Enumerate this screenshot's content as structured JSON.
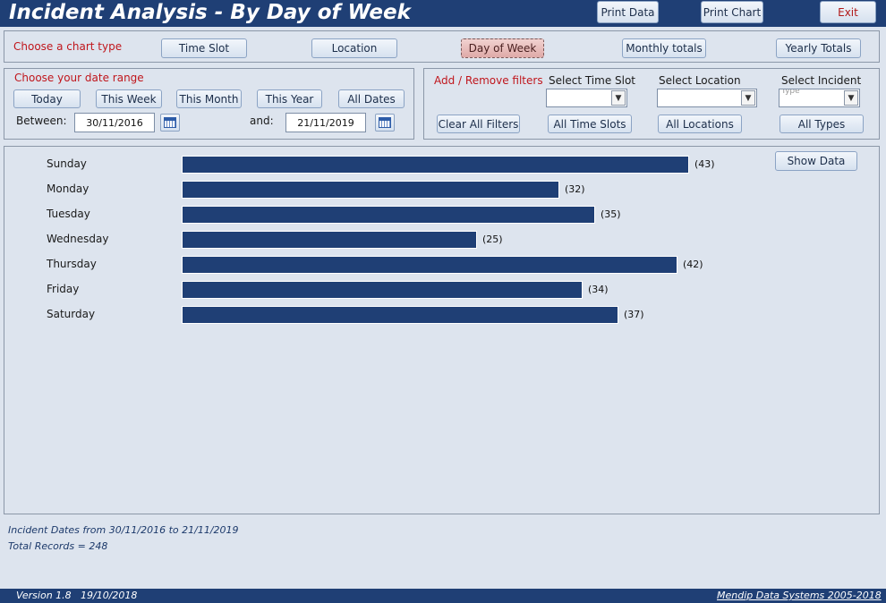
{
  "header": {
    "title": "Incident Analysis - By Day of Week",
    "print_data": "Print Data",
    "print_chart": "Print Chart",
    "exit": "Exit"
  },
  "chart_type": {
    "label": "Choose a chart type",
    "options": [
      "Time Slot",
      "Location",
      "Day of Week",
      "Monthly totals",
      "Yearly Totals"
    ],
    "selected": "Day of Week"
  },
  "date_range": {
    "label": "Choose your date range",
    "buttons": [
      "Today",
      "This Week",
      "This Month",
      "This Year",
      "All Dates"
    ],
    "between_label": "Between:",
    "and_label": "and:",
    "from": "30/11/2016",
    "to": "21/11/2019"
  },
  "filters": {
    "label": "Add / Remove filters",
    "time_slot_label": "Select Time Slot",
    "location_label": "Select Location",
    "incident_label": "Select Incident",
    "incident_stub": "Type",
    "clear_all": "Clear All Filters",
    "all_time_slots": "All Time Slots",
    "all_locations": "All Locations",
    "all_types": "All Types"
  },
  "show_data": "Show Data",
  "chart_data": {
    "type": "bar",
    "orientation": "horizontal",
    "categories": [
      "Sunday",
      "Monday",
      "Tuesday",
      "Wednesday",
      "Thursday",
      "Friday",
      "Saturday"
    ],
    "values": [
      43,
      32,
      35,
      25,
      42,
      34,
      37
    ],
    "value_labels": [
      "(43)",
      "(32)",
      "(35)",
      "(25)",
      "(42)",
      "(34)",
      "(37)"
    ],
    "xlim": [
      0,
      43
    ],
    "bar_color": "#1f3f75",
    "grid": false,
    "title": "",
    "xlabel": "",
    "ylabel": ""
  },
  "summary": {
    "dates_text": "Incident Dates from 30/11/2016 to 21/11/2019",
    "total_text": "Total Records = 248"
  },
  "footer": {
    "version": "Version 1.8",
    "date": "19/10/2018",
    "company": "Mendip Data Systems 2005-2018"
  },
  "colors": {
    "header_bg": "#1f3f75",
    "background": "#dde4ee",
    "accent_red": "#c0161c",
    "active_button": "#e6bdbb"
  }
}
